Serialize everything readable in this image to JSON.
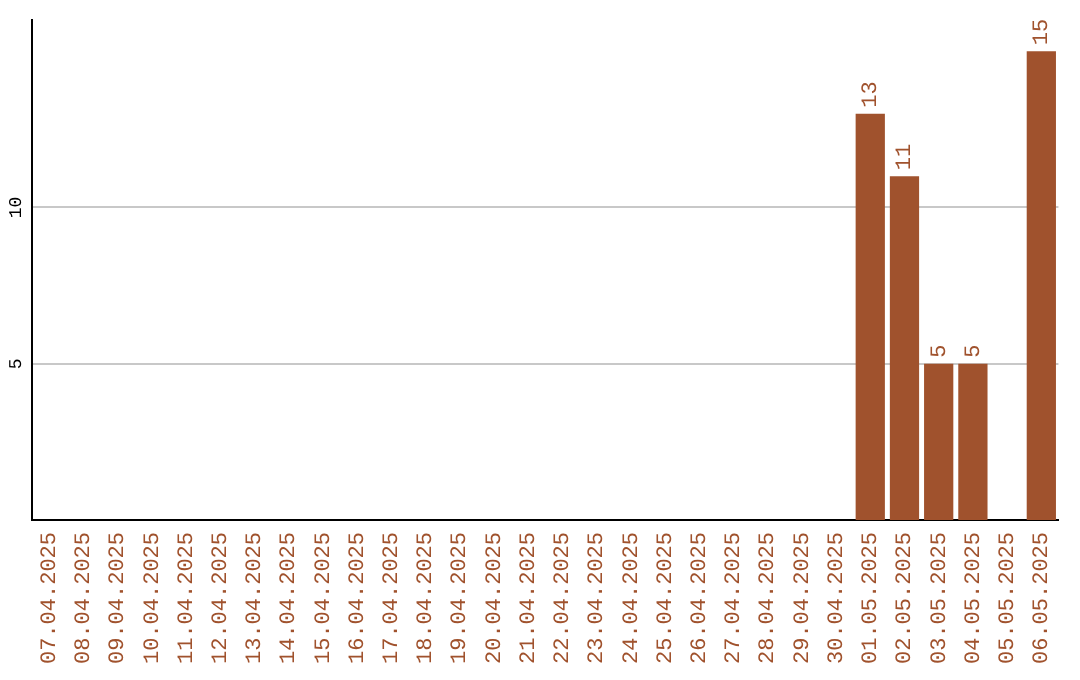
{
  "chart_data": {
    "type": "bar",
    "categories": [
      "07.04.2025",
      "08.04.2025",
      "09.04.2025",
      "10.04.2025",
      "11.04.2025",
      "12.04.2025",
      "13.04.2025",
      "14.04.2025",
      "15.04.2025",
      "16.04.2025",
      "17.04.2025",
      "18.04.2025",
      "19.04.2025",
      "20.04.2025",
      "21.04.2025",
      "22.04.2025",
      "23.04.2025",
      "24.04.2025",
      "25.04.2025",
      "26.04.2025",
      "27.04.2025",
      "28.04.2025",
      "29.04.2025",
      "30.04.2025",
      "01.05.2025",
      "02.05.2025",
      "03.05.2025",
      "04.05.2025",
      "05.05.2025",
      "06.05.2025"
    ],
    "values": [
      0,
      0,
      0,
      0,
      0,
      0,
      0,
      0,
      0,
      0,
      0,
      0,
      0,
      0,
      0,
      0,
      0,
      0,
      0,
      0,
      0,
      0,
      0,
      0,
      13,
      11,
      5,
      5,
      0,
      15
    ],
    "value_labels": [
      null,
      null,
      null,
      null,
      null,
      null,
      null,
      null,
      null,
      null,
      null,
      null,
      null,
      null,
      null,
      null,
      null,
      null,
      null,
      null,
      null,
      null,
      null,
      null,
      "13",
      "11",
      "5",
      "5",
      null,
      "15"
    ],
    "color": "#a0522d",
    "ylim": [
      0,
      16
    ],
    "yticks": [
      5,
      10
    ],
    "grid": "y",
    "legend": false
  }
}
